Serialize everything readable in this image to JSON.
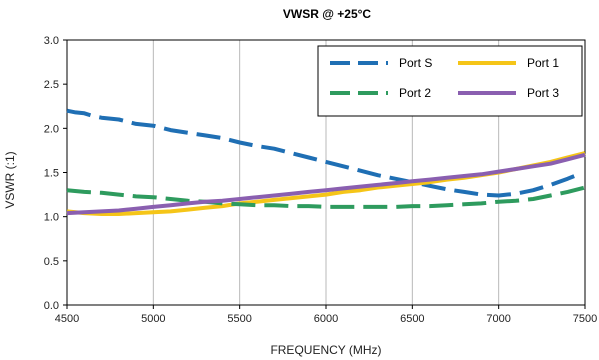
{
  "chart_data": {
    "type": "line",
    "title": "VWSR @ +25°C",
    "xlabel": "FREQUENCY (MHz)",
    "ylabel": "VSWR (:1)",
    "xlim": [
      4500,
      7500
    ],
    "ylim": [
      0.0,
      3.0
    ],
    "x_ticks": [
      "4500",
      "5000",
      "5500",
      "6000",
      "6500",
      "7000",
      "7500"
    ],
    "y_ticks": [
      "0.0",
      "0.5",
      "1.0",
      "1.5",
      "2.0",
      "2.5",
      "3.0"
    ],
    "grid": "vertical",
    "legend_position": "top-right",
    "series": [
      {
        "name": "Port S",
        "color": "#1f6fb4",
        "dash": "dashed",
        "x": [
          4500,
          4550,
          4600,
          4650,
          4700,
          4800,
          4900,
          5000,
          5100,
          5200,
          5300,
          5400,
          5500,
          5600,
          5700,
          5800,
          5900,
          6000,
          6100,
          6200,
          6300,
          6400,
          6500,
          6600,
          6700,
          6800,
          6900,
          7000,
          7100,
          7200,
          7300,
          7400,
          7450
        ],
        "y": [
          2.2,
          2.18,
          2.17,
          2.14,
          2.12,
          2.1,
          2.05,
          2.03,
          1.98,
          1.95,
          1.92,
          1.89,
          1.84,
          1.8,
          1.77,
          1.72,
          1.67,
          1.62,
          1.57,
          1.52,
          1.47,
          1.43,
          1.39,
          1.35,
          1.31,
          1.28,
          1.25,
          1.24,
          1.26,
          1.3,
          1.36,
          1.43,
          1.47
        ]
      },
      {
        "name": "Port 1",
        "color": "#f5c518",
        "dash": "solid",
        "x": [
          4500,
          4600,
          4700,
          4800,
          4900,
          5000,
          5100,
          5200,
          5300,
          5400,
          5500,
          5600,
          5700,
          5800,
          5900,
          6000,
          6100,
          6200,
          6300,
          6400,
          6500,
          6600,
          6700,
          6800,
          6900,
          7000,
          7100,
          7200,
          7300,
          7400,
          7500
        ],
        "y": [
          1.06,
          1.04,
          1.03,
          1.03,
          1.04,
          1.05,
          1.06,
          1.08,
          1.1,
          1.12,
          1.15,
          1.17,
          1.19,
          1.21,
          1.23,
          1.25,
          1.28,
          1.3,
          1.33,
          1.35,
          1.37,
          1.39,
          1.42,
          1.44,
          1.47,
          1.5,
          1.54,
          1.58,
          1.62,
          1.67,
          1.72
        ]
      },
      {
        "name": "Port 2",
        "color": "#2e9b5e",
        "dash": "dashed",
        "x": [
          4500,
          4600,
          4700,
          4800,
          4900,
          5000,
          5100,
          5200,
          5300,
          5400,
          5500,
          5600,
          5700,
          5800,
          5900,
          6000,
          6100,
          6200,
          6300,
          6400,
          6500,
          6600,
          6700,
          6800,
          6900,
          7000,
          7100,
          7200,
          7300,
          7400,
          7500
        ],
        "y": [
          1.3,
          1.28,
          1.27,
          1.25,
          1.23,
          1.22,
          1.2,
          1.18,
          1.17,
          1.15,
          1.14,
          1.13,
          1.13,
          1.12,
          1.12,
          1.11,
          1.11,
          1.11,
          1.11,
          1.11,
          1.12,
          1.12,
          1.13,
          1.14,
          1.15,
          1.17,
          1.18,
          1.2,
          1.24,
          1.28,
          1.33
        ]
      },
      {
        "name": "Port 3",
        "color": "#8a5fb0",
        "dash": "solid",
        "x": [
          4500,
          4600,
          4700,
          4800,
          4900,
          5000,
          5100,
          5200,
          5300,
          5400,
          5500,
          5600,
          5700,
          5800,
          5900,
          6000,
          6100,
          6200,
          6300,
          6400,
          6500,
          6600,
          6700,
          6800,
          6900,
          7000,
          7100,
          7200,
          7300,
          7400,
          7500
        ],
        "y": [
          1.04,
          1.05,
          1.06,
          1.07,
          1.09,
          1.11,
          1.13,
          1.15,
          1.17,
          1.18,
          1.2,
          1.22,
          1.24,
          1.26,
          1.28,
          1.3,
          1.32,
          1.34,
          1.36,
          1.38,
          1.4,
          1.42,
          1.44,
          1.46,
          1.48,
          1.51,
          1.54,
          1.57,
          1.6,
          1.65,
          1.7
        ]
      }
    ]
  }
}
